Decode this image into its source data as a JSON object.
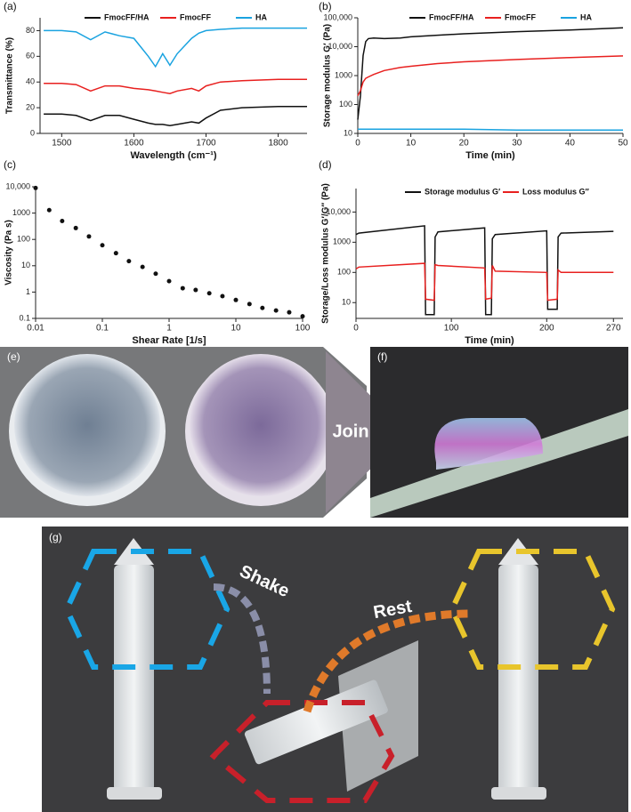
{
  "chart_data": [
    {
      "type": "line",
      "panel_label": "(a)",
      "x_label": "Wavelength (cm⁻¹)",
      "y_label": "Transmittance (%)",
      "x": [
        1475,
        1500,
        1520,
        1540,
        1560,
        1580,
        1600,
        1620,
        1630,
        1640,
        1650,
        1660,
        1680,
        1690,
        1700,
        1720,
        1750,
        1800,
        1840
      ],
      "series": [
        {
          "name": "FmocFF/HA",
          "color": "#111111",
          "values": [
            15,
            15,
            14,
            10,
            14,
            14,
            11,
            8,
            7,
            7,
            6,
            7,
            9,
            8,
            12,
            18,
            20,
            21,
            21
          ]
        },
        {
          "name": "FmocFF",
          "color": "#e8201f",
          "values": [
            39,
            39,
            38,
            33,
            37,
            37,
            35,
            34,
            33,
            32,
            31,
            33,
            35,
            33,
            37,
            40,
            41,
            42,
            42
          ]
        },
        {
          "name": "HA",
          "color": "#1aa3e0",
          "values": [
            80,
            80,
            79,
            73,
            79,
            76,
            74,
            60,
            52,
            62,
            53,
            62,
            74,
            78,
            80,
            81,
            82,
            82,
            82
          ]
        }
      ],
      "xlim": [
        1470,
        1840
      ],
      "xticks": [
        1500,
        1600,
        1700,
        1800
      ],
      "ylim": [
        0,
        90
      ],
      "yticks": [
        0,
        20,
        40,
        60,
        80
      ],
      "grid": false,
      "legend": "top"
    },
    {
      "type": "line",
      "panel_label": "(b)",
      "x_label": "Time (min)",
      "y_label": "Storage modulus G′ (Pa)",
      "x": [
        0,
        0.5,
        1,
        1.5,
        2,
        3,
        5,
        8,
        10,
        15,
        20,
        30,
        40,
        50
      ],
      "series": [
        {
          "name": "FmocFF/HA",
          "color": "#111111",
          "values": [
            30,
            200,
            5000,
            15000,
            19000,
            20000,
            19000,
            20000,
            22000,
            25000,
            28000,
            33000,
            38000,
            45000
          ]
        },
        {
          "name": "FmocFF",
          "color": "#e8201f",
          "values": [
            200,
            300,
            600,
            800,
            900,
            1100,
            1500,
            1900,
            2100,
            2600,
            3000,
            3600,
            4200,
            4800
          ]
        },
        {
          "name": "HA",
          "color": "#1aa3e0",
          "values": [
            14,
            14,
            14,
            14,
            14,
            14,
            14,
            14,
            14,
            14,
            14,
            13,
            13,
            13
          ]
        }
      ],
      "xlim": [
        0,
        50
      ],
      "xticks": [
        0,
        10,
        20,
        30,
        40,
        50
      ],
      "ylim": [
        10,
        100000
      ],
      "yscale": "log",
      "yticks": [
        10,
        100,
        1000,
        {
          "value": 10000,
          "label": "10,000"
        },
        {
          "value": 100000,
          "label": "100,000"
        }
      ],
      "grid": false,
      "legend": "top"
    },
    {
      "type": "scatter",
      "panel_label": "(c)",
      "x_label": "Shear Rate [1/s]",
      "y_label": "Viscosity (Pa s)",
      "color": "#111111",
      "x": [
        0.01,
        0.016,
        0.025,
        0.04,
        0.063,
        0.1,
        0.16,
        0.25,
        0.4,
        0.63,
        1,
        1.6,
        2.5,
        4,
        6.3,
        10,
        16,
        25,
        40,
        63,
        100
      ],
      "values": [
        9000,
        1300,
        500,
        270,
        130,
        60,
        30,
        15,
        9,
        5,
        2.6,
        1.4,
        1.2,
        0.9,
        0.7,
        0.5,
        0.35,
        0.25,
        0.2,
        0.17,
        0.12
      ],
      "xlim": [
        0.01,
        100
      ],
      "xscale": "log",
      "xticks": [
        0.01,
        0.1,
        1,
        10,
        100
      ],
      "ylim": [
        0.1,
        10000
      ],
      "yscale": "log",
      "yticks": [
        0.1,
        1,
        10,
        100,
        1000,
        {
          "value": 10000,
          "label": "10,000"
        }
      ],
      "grid": false
    },
    {
      "type": "line",
      "panel_label": "(d)",
      "x_label": "Time (min)",
      "y_label": "Storage/Loss modulus G′/G″ (Pa)",
      "x": [
        0,
        3,
        72,
        73,
        82,
        83,
        86,
        135,
        136,
        142,
        143,
        146,
        200,
        201,
        211,
        212,
        215,
        270
      ],
      "series": [
        {
          "name": "Storage modulus G′",
          "color": "#111111",
          "values": [
            1800,
            2000,
            3500,
            4,
            4,
            1500,
            2200,
            3000,
            4,
            4,
            1300,
            1800,
            2400,
            6,
            6,
            1500,
            2000,
            2300
          ]
        },
        {
          "name": "Loss modulus G″",
          "color": "#e8201f",
          "values": [
            130,
            150,
            200,
            13,
            12,
            180,
            170,
            140,
            13,
            14,
            170,
            110,
            100,
            12,
            13,
            120,
            100,
            100
          ]
        }
      ],
      "xlim": [
        0,
        280
      ],
      "xticks": [
        0,
        100,
        200,
        270
      ],
      "ylim": [
        3,
        60000
      ],
      "yscale": "log",
      "yticks": [
        10,
        100,
        1000,
        {
          "value": 10000,
          "label": "10,000"
        }
      ],
      "grid": false,
      "legend": "top"
    }
  ],
  "photos": [
    {
      "label": "(e)"
    },
    {
      "label": "(f)"
    },
    {
      "label": "(g)"
    }
  ],
  "annotations": {
    "join": "Join",
    "shake": "Shake",
    "rest": "Rest"
  }
}
